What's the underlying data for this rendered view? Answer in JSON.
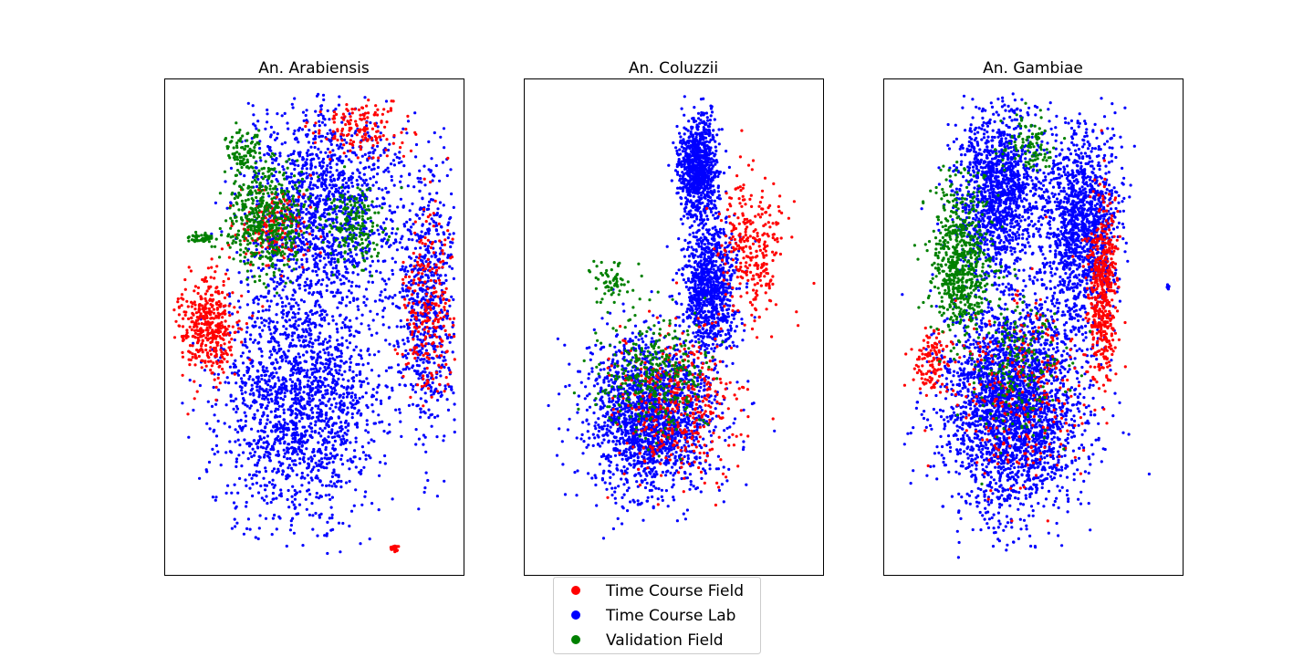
{
  "chart_data": {
    "type": "scatter",
    "axes_visible_ticks": false,
    "grid": false,
    "legend_placement": "bottom-center",
    "colors": {
      "time_course_field": "#ff0000",
      "time_course_lab": "#0000ff",
      "validation_field": "#008000"
    },
    "legend": [
      {
        "label": "Time Course Field",
        "series": "time_course_field"
      },
      {
        "label": "Time Course Lab",
        "series": "time_course_lab"
      },
      {
        "label": "Validation Field",
        "series": "validation_field"
      }
    ],
    "panels": [
      {
        "title": "An. Arabiensis",
        "xlim": [
          0,
          10
        ],
        "ylim": [
          0,
          10
        ],
        "series": [
          {
            "series": "time_course_lab",
            "count": 3800,
            "blobs": [
              {
                "cx": 4.5,
                "cy": 3.5,
                "sx": 2.4,
                "sy": 2.2,
                "w": 5
              },
              {
                "cx": 5.3,
                "cy": 7.4,
                "sx": 2.3,
                "sy": 1.9,
                "w": 4
              },
              {
                "cx": 8.8,
                "cy": 5.5,
                "sx": 0.9,
                "sy": 2.5,
                "w": 2
              }
            ]
          },
          {
            "series": "time_course_field",
            "count": 1000,
            "blobs": [
              {
                "cx": 1.4,
                "cy": 5.0,
                "sx": 0.9,
                "sy": 1.0,
                "w": 5
              },
              {
                "cx": 8.8,
                "cy": 5.3,
                "sx": 0.8,
                "sy": 1.6,
                "w": 3
              },
              {
                "cx": 6.5,
                "cy": 9.0,
                "sx": 1.5,
                "sy": 0.5,
                "w": 2
              },
              {
                "cx": 3.6,
                "cy": 7.0,
                "sx": 1.0,
                "sy": 0.8,
                "w": 2
              },
              {
                "cx": 7.7,
                "cy": 0.55,
                "sx": 0.08,
                "sy": 0.06,
                "w": 0.3
              }
            ]
          },
          {
            "series": "time_course_field",
            "count": 22,
            "blobs": [
              {
                "cx": 7.6,
                "cy": 0.55,
                "sx": 0.06,
                "sy": 0.04,
                "w": 1
              }
            ]
          },
          {
            "series": "validation_field",
            "count": 850,
            "blobs": [
              {
                "cx": 3.4,
                "cy": 7.2,
                "sx": 1.2,
                "sy": 1.0,
                "w": 5
              },
              {
                "cx": 6.3,
                "cy": 7.0,
                "sx": 0.9,
                "sy": 0.7,
                "w": 2
              },
              {
                "cx": 2.7,
                "cy": 8.6,
                "sx": 0.6,
                "sy": 0.4,
                "w": 1
              },
              {
                "cx": 1.3,
                "cy": 6.8,
                "sx": 0.35,
                "sy": 0.1,
                "w": 0.5
              }
            ]
          }
        ]
      },
      {
        "title": "An. Coluzzii",
        "xlim": [
          0,
          10
        ],
        "ylim": [
          0,
          10
        ],
        "series": [
          {
            "series": "time_course_lab",
            "count": 3600,
            "blobs": [
              {
                "cx": 5.8,
                "cy": 8.2,
                "sx": 0.55,
                "sy": 0.9,
                "w": 3
              },
              {
                "cx": 6.2,
                "cy": 5.8,
                "sx": 0.8,
                "sy": 1.2,
                "w": 3
              },
              {
                "cx": 4.2,
                "cy": 3.2,
                "sx": 2.0,
                "sy": 1.4,
                "w": 6
              }
            ]
          },
          {
            "series": "time_course_field",
            "count": 700,
            "blobs": [
              {
                "cx": 7.6,
                "cy": 6.6,
                "sx": 0.9,
                "sy": 1.2,
                "w": 3
              },
              {
                "cx": 5.2,
                "cy": 3.4,
                "sx": 1.8,
                "sy": 1.4,
                "w": 5
              }
            ]
          },
          {
            "series": "validation_field",
            "count": 400,
            "blobs": [
              {
                "cx": 4.3,
                "cy": 4.0,
                "sx": 1.6,
                "sy": 1.0,
                "w": 5
              },
              {
                "cx": 2.9,
                "cy": 5.9,
                "sx": 0.7,
                "sy": 0.35,
                "w": 1
              }
            ]
          }
        ]
      },
      {
        "title": "An. Gambiae",
        "xlim": [
          0,
          10
        ],
        "ylim": [
          0,
          10
        ],
        "series": [
          {
            "series": "time_course_lab",
            "count": 5200,
            "blobs": [
              {
                "cx": 4.3,
                "cy": 3.4,
                "sx": 2.1,
                "sy": 1.9,
                "w": 6
              },
              {
                "cx": 3.9,
                "cy": 7.7,
                "sx": 1.3,
                "sy": 1.5,
                "w": 3
              },
              {
                "cx": 6.6,
                "cy": 7.0,
                "sx": 1.1,
                "sy": 1.8,
                "w": 3
              }
            ]
          },
          {
            "series": "time_course_lab",
            "count": 14,
            "blobs": [
              {
                "cx": 9.5,
                "cy": 5.8,
                "sx": 0.04,
                "sy": 0.05,
                "w": 1
              }
            ]
          },
          {
            "series": "time_course_field",
            "count": 900,
            "blobs": [
              {
                "cx": 7.3,
                "cy": 5.7,
                "sx": 0.45,
                "sy": 1.6,
                "w": 5
              },
              {
                "cx": 4.5,
                "cy": 3.8,
                "sx": 1.9,
                "sy": 1.7,
                "w": 3
              },
              {
                "cx": 1.6,
                "cy": 4.3,
                "sx": 0.6,
                "sy": 0.6,
                "w": 1
              }
            ]
          },
          {
            "series": "validation_field",
            "count": 950,
            "blobs": [
              {
                "cx": 2.6,
                "cy": 6.3,
                "sx": 0.9,
                "sy": 1.3,
                "w": 6
              },
              {
                "cx": 4.4,
                "cy": 4.2,
                "sx": 1.4,
                "sy": 1.4,
                "w": 2
              },
              {
                "cx": 4.8,
                "cy": 8.7,
                "sx": 0.8,
                "sy": 0.5,
                "w": 1
              }
            ]
          }
        ]
      }
    ]
  }
}
